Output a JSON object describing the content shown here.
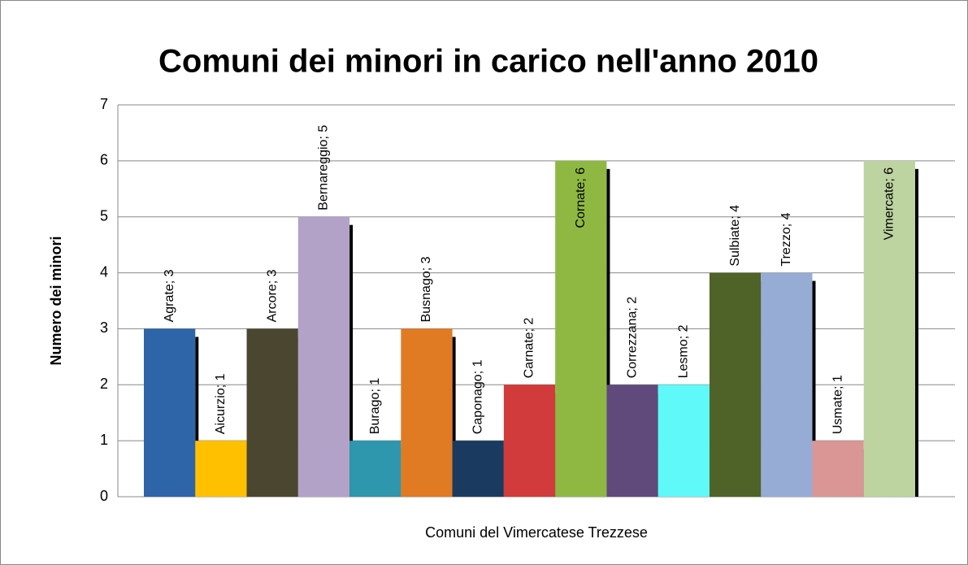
{
  "chart_data": {
    "type": "bar",
    "title": "Comuni dei minori in carico nell'anno 2010",
    "y_label": "Numero dei minori",
    "x_label": "Comuni del Vimercatese Trezzese",
    "values": [
      3,
      1,
      3,
      5,
      1,
      3,
      1,
      2,
      6,
      2,
      2,
      4,
      4,
      1,
      6
    ],
    "value_labels": [
      "Agrate; 3",
      "Aicurzio; 1",
      "Arcore; 3",
      "Bernareggio; 5",
      "Burago; 1",
      "Busnago; 3",
      "Caponago; 1",
      "Carnate; 2",
      "Cornate; 6",
      "Correzzana; 2",
      "Lesmo; 2",
      "Sulbiate; 4",
      "Trezzo; 4",
      "Usmate; 1",
      "Vimercate; 6"
    ],
    "colors": [
      "#2e64a8",
      "#ffc000",
      "#4a4630",
      "#b3a2c7",
      "#2e96ad",
      "#e07b23",
      "#1b3a5f",
      "#d13b3b",
      "#8fb843",
      "#5f4a7b",
      "#5ff9f9",
      "#4f6228",
      "#97acd4",
      "#d99694",
      "#bdd3a0"
    ],
    "ylim": [
      0,
      7
    ],
    "yticks": [
      0,
      1,
      2,
      3,
      4,
      5,
      6,
      7
    ],
    "grid": true
  }
}
